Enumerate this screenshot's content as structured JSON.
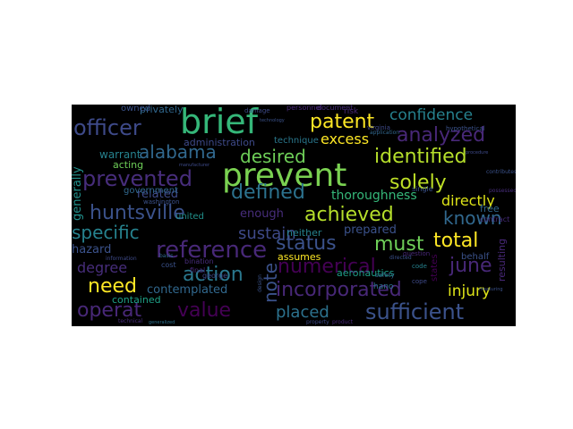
{
  "words": [
    {
      "text": "brief",
      "color": "#35b779"
    },
    {
      "text": "prevent",
      "color": "#7ad151"
    },
    {
      "text": "officer",
      "color": "#3e4a89"
    },
    {
      "text": "patent",
      "color": "#fde725"
    },
    {
      "text": "confidence",
      "color": "#26828e"
    },
    {
      "text": "analyzed",
      "color": "#482878"
    },
    {
      "text": "alabama",
      "color": "#31688e"
    },
    {
      "text": "desired",
      "color": "#6ece58"
    },
    {
      "text": "identified",
      "color": "#b5de2b"
    },
    {
      "text": "excess",
      "color": "#fde725"
    },
    {
      "text": "prevented",
      "color": "#472d7b"
    },
    {
      "text": "defined",
      "color": "#2c728e"
    },
    {
      "text": "solely",
      "color": "#bddf26"
    },
    {
      "text": "huntsville",
      "color": "#3b528b"
    },
    {
      "text": "achieved",
      "color": "#b5de2b"
    },
    {
      "text": "known",
      "color": "#31688e"
    },
    {
      "text": "specific",
      "color": "#26828e"
    },
    {
      "text": "sustain",
      "color": "#3e4a89"
    },
    {
      "text": "status",
      "color": "#3b528b"
    },
    {
      "text": "must",
      "color": "#6ece58"
    },
    {
      "text": "total",
      "color": "#fde725"
    },
    {
      "text": "reference",
      "color": "#482878"
    },
    {
      "text": "numerical",
      "color": "#440154"
    },
    {
      "text": "june",
      "color": "#482878"
    },
    {
      "text": "action",
      "color": "#2a788e"
    },
    {
      "text": "note",
      "color": "#3b528b"
    },
    {
      "text": "need",
      "color": "#fde725"
    },
    {
      "text": "degree",
      "color": "#472d7b"
    },
    {
      "text": "incorporated",
      "color": "#482878"
    },
    {
      "text": "injury",
      "color": "#dde318"
    },
    {
      "text": "operat",
      "color": "#482878"
    },
    {
      "text": "value",
      "color": "#440154"
    },
    {
      "text": "placed",
      "color": "#2c728e"
    },
    {
      "text": "sufficient",
      "color": "#3b528b"
    },
    {
      "text": "thoroughness",
      "color": "#35b779"
    },
    {
      "text": "directly",
      "color": "#dde318"
    },
    {
      "text": "related",
      "color": "#3e4a89"
    },
    {
      "text": "enough",
      "color": "#472d7b"
    },
    {
      "text": "prepared",
      "color": "#3b528b"
    },
    {
      "text": "hazard",
      "color": "#3b528b"
    },
    {
      "text": "contemplated",
      "color": "#31688e"
    },
    {
      "text": "administration",
      "color": "#3e4a89"
    },
    {
      "text": "technique",
      "color": "#2a788e"
    },
    {
      "text": "warrant",
      "color": "#26828e"
    },
    {
      "text": "acting",
      "color": "#6ece58"
    },
    {
      "text": "privately",
      "color": "#31688e"
    },
    {
      "text": "owned",
      "color": "#3b528b"
    },
    {
      "text": "government",
      "color": "#31688e"
    },
    {
      "text": "united",
      "color": "#21918c"
    },
    {
      "text": "contained",
      "color": "#1fa187"
    },
    {
      "text": "generally",
      "color": "#21918c"
    },
    {
      "text": "neither",
      "color": "#26828e"
    },
    {
      "text": "assumes",
      "color": "#fde725"
    },
    {
      "text": "aeronautics",
      "color": "#1f9e89"
    },
    {
      "text": "states",
      "color": "#440154"
    },
    {
      "text": "resulting",
      "color": "#482878"
    },
    {
      "text": "free",
      "color": "#31688e"
    },
    {
      "text": "behalf",
      "color": "#3b528b"
    },
    {
      "text": "hano",
      "color": "#2c728e"
    },
    {
      "text": "cope",
      "color": "#3e4a89"
    },
    {
      "text": "code",
      "color": "#26828e"
    },
    {
      "text": "safety",
      "color": "#31688e"
    },
    {
      "text": "cost",
      "color": "#3b528b"
    },
    {
      "text": "final",
      "color": "#482878"
    },
    {
      "text": "george",
      "color": "#3e4a89"
    },
    {
      "text": "bination",
      "color": "#472d7b"
    },
    {
      "text": "washington",
      "color": "#3b528b"
    },
    {
      "text": "document",
      "color": "#472d7b"
    },
    {
      "text": "risk",
      "color": "#482878"
    },
    {
      "text": "virginia",
      "color": "#3e4a89"
    },
    {
      "text": "single",
      "color": "#3b528b"
    },
    {
      "text": "hypothetical",
      "color": "#3b528b"
    },
    {
      "text": "contract",
      "color": "#472d7b"
    },
    {
      "text": "application",
      "color": "#31688e"
    },
    {
      "text": "question",
      "color": "#482878"
    },
    {
      "text": "directed",
      "color": "#3b528b"
    },
    {
      "text": "information",
      "color": "#3e4a89"
    },
    {
      "text": "basis",
      "color": "#31688e"
    },
    {
      "text": "generalized",
      "color": "#2c728e"
    },
    {
      "text": "technical",
      "color": "#472d7b"
    },
    {
      "text": "design",
      "color": "#3b528b"
    },
    {
      "text": "product",
      "color": "#482878"
    },
    {
      "text": "property",
      "color": "#3e4a89"
    },
    {
      "text": "contributes",
      "color": "#3b528b"
    },
    {
      "text": "possessed",
      "color": "#472d7b"
    },
    {
      "text": "damage",
      "color": "#3e4a89"
    },
    {
      "text": "technology",
      "color": "#3b528b"
    },
    {
      "text": "manufacturer",
      "color": "#3e4a89"
    },
    {
      "text": "personnel",
      "color": "#482878"
    },
    {
      "text": "measuring",
      "color": "#3b528b"
    },
    {
      "text": "procedure",
      "color": "#3e4a89"
    }
  ]
}
